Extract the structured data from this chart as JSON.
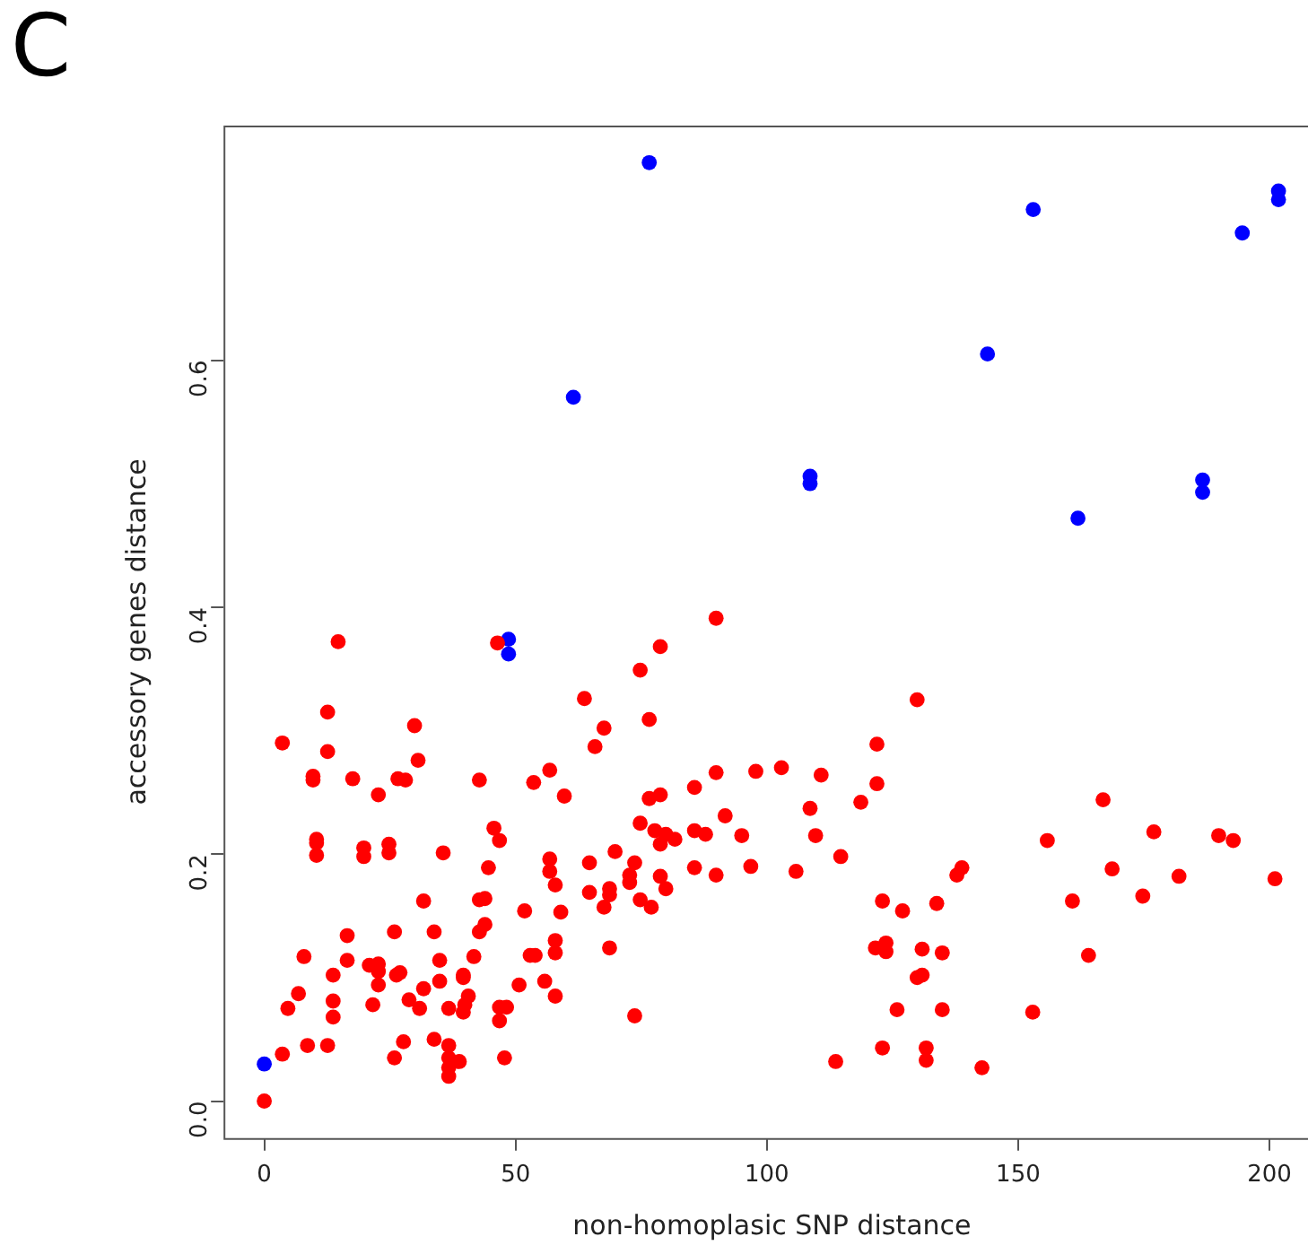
{
  "chart_data": {
    "type": "scatter",
    "title": "C",
    "xlabel": "non-homoplasic SNP distance",
    "ylabel": "accessory genes distance",
    "xlim": [
      -8.1,
      210.1
    ],
    "ylim": [
      -0.03,
      0.79
    ],
    "xticks": [
      0,
      50,
      100,
      150,
      200
    ],
    "yticks": [
      {
        "value": 0,
        "label": "0.0"
      },
      0.2,
      0.4,
      0.6
    ],
    "grid": false,
    "legend": false,
    "marker": "circle",
    "series": [
      {
        "color": "#ff0000",
        "x": [
          14.7,
          46.4,
          12.6,
          29.9,
          3.6,
          12.6,
          30.6,
          9.7,
          9.7,
          17.6,
          26.6,
          28.1,
          22.7,
          42.8,
          45.7,
          46.8,
          10.4,
          10.4,
          10.4,
          19.8,
          19.8,
          24.8,
          24.8,
          35.6,
          44.6,
          31.7,
          42.8,
          43.9,
          43.9,
          42.8,
          16.5,
          25.9,
          33.8,
          7.9,
          16.5,
          20.9,
          22.7,
          22.7,
          13.7,
          26.3,
          27,
          34.9,
          41.7,
          39.6,
          39.6,
          34.9,
          31.7,
          22.7,
          6.8,
          13.7,
          13.7,
          4.7,
          21.6,
          28.8,
          30.9,
          36.7,
          40.6,
          39.9,
          39.6,
          46.8,
          48.2,
          46.8,
          8.6,
          12.6,
          3.6,
          27.7,
          33.8,
          36.7,
          25.9,
          36.7,
          38.8,
          36.7,
          36.7,
          47.8,
          0,
          89.9,
          78.8,
          74.8,
          63.7,
          76.6,
          67.6,
          65.8,
          56.8,
          53.6,
          59.7,
          76.6,
          78.8,
          85.6,
          89.9,
          97.8,
          91.7,
          74.8,
          77.7,
          79.9,
          81.7,
          78.8,
          85.6,
          87.8,
          95,
          56.8,
          56.8,
          57.9,
          64.7,
          69.8,
          73.7,
          72.7,
          72.7,
          78.8,
          79.9,
          85.6,
          89.9,
          96.8,
          64.7,
          68.7,
          68.7,
          67.6,
          74.8,
          77,
          51.8,
          59,
          57.9,
          57.9,
          52.9,
          53.9,
          68.7,
          50.7,
          55.8,
          57.9,
          73.7,
          129.9,
          121.9,
          102.9,
          110.8,
          121.9,
          108.6,
          118.7,
          109.7,
          105.8,
          114.7,
          138.8,
          137.8,
          123,
          127,
          133.8,
          121.6,
          123.7,
          123.7,
          130.9,
          134.9,
          129.9,
          130.9,
          125.9,
          134.9,
          123,
          131.7,
          131.7,
          113.7,
          142.8,
          166.9,
          155.8,
          177,
          189.9,
          192.8,
          168.7,
          182,
          201.1,
          160.8,
          174.8,
          164,
          152.9
        ],
        "values": [
          0.372,
          0.371,
          0.315,
          0.304,
          0.29,
          0.283,
          0.276,
          0.263,
          0.26,
          0.261,
          0.261,
          0.26,
          0.248,
          0.26,
          0.221,
          0.211,
          0.212,
          0.209,
          0.199,
          0.205,
          0.198,
          0.208,
          0.201,
          0.201,
          0.189,
          0.162,
          0.163,
          0.164,
          0.143,
          0.137,
          0.134,
          0.137,
          0.137,
          0.117,
          0.114,
          0.11,
          0.111,
          0.105,
          0.102,
          0.102,
          0.104,
          0.114,
          0.117,
          0.102,
          0.1,
          0.097,
          0.091,
          0.094,
          0.087,
          0.081,
          0.068,
          0.075,
          0.078,
          0.082,
          0.075,
          0.075,
          0.085,
          0.078,
          0.072,
          0.076,
          0.076,
          0.065,
          0.045,
          0.045,
          0.038,
          0.048,
          0.05,
          0.045,
          0.035,
          0.035,
          0.032,
          0.027,
          0.02,
          0.035,
          0,
          0.391,
          0.368,
          0.349,
          0.326,
          0.309,
          0.302,
          0.287,
          0.268,
          0.258,
          0.247,
          0.245,
          0.248,
          0.254,
          0.266,
          0.267,
          0.231,
          0.225,
          0.219,
          0.216,
          0.212,
          0.208,
          0.219,
          0.216,
          0.215,
          0.196,
          0.186,
          0.175,
          0.193,
          0.202,
          0.193,
          0.183,
          0.177,
          0.182,
          0.172,
          0.189,
          0.183,
          0.19,
          0.169,
          0.172,
          0.167,
          0.157,
          0.163,
          0.157,
          0.154,
          0.153,
          0.13,
          0.12,
          0.118,
          0.118,
          0.124,
          0.094,
          0.097,
          0.085,
          0.069,
          0.325,
          0.289,
          0.27,
          0.264,
          0.257,
          0.237,
          0.242,
          0.215,
          0.186,
          0.198,
          0.189,
          0.183,
          0.162,
          0.154,
          0.16,
          0.124,
          0.128,
          0.121,
          0.123,
          0.12,
          0.1,
          0.102,
          0.074,
          0.074,
          0.043,
          0.043,
          0.033,
          0.032,
          0.027,
          0.244,
          0.211,
          0.218,
          0.215,
          0.211,
          0.188,
          0.182,
          0.18,
          0.162,
          0.166,
          0.118,
          0.072
        ]
      },
      {
        "color": "#0000ff",
        "x": [
          0,
          48.6,
          48.6,
          61.5,
          76.6,
          108.6,
          108.6,
          143.9,
          153,
          161.9,
          186.7,
          186.7,
          194.6,
          201.8,
          201.8
        ],
        "values": [
          0.03,
          0.374,
          0.362,
          0.57,
          0.76,
          0.506,
          0.5,
          0.605,
          0.722,
          0.472,
          0.503,
          0.493,
          0.703,
          0.737,
          0.73
        ]
      }
    ]
  }
}
